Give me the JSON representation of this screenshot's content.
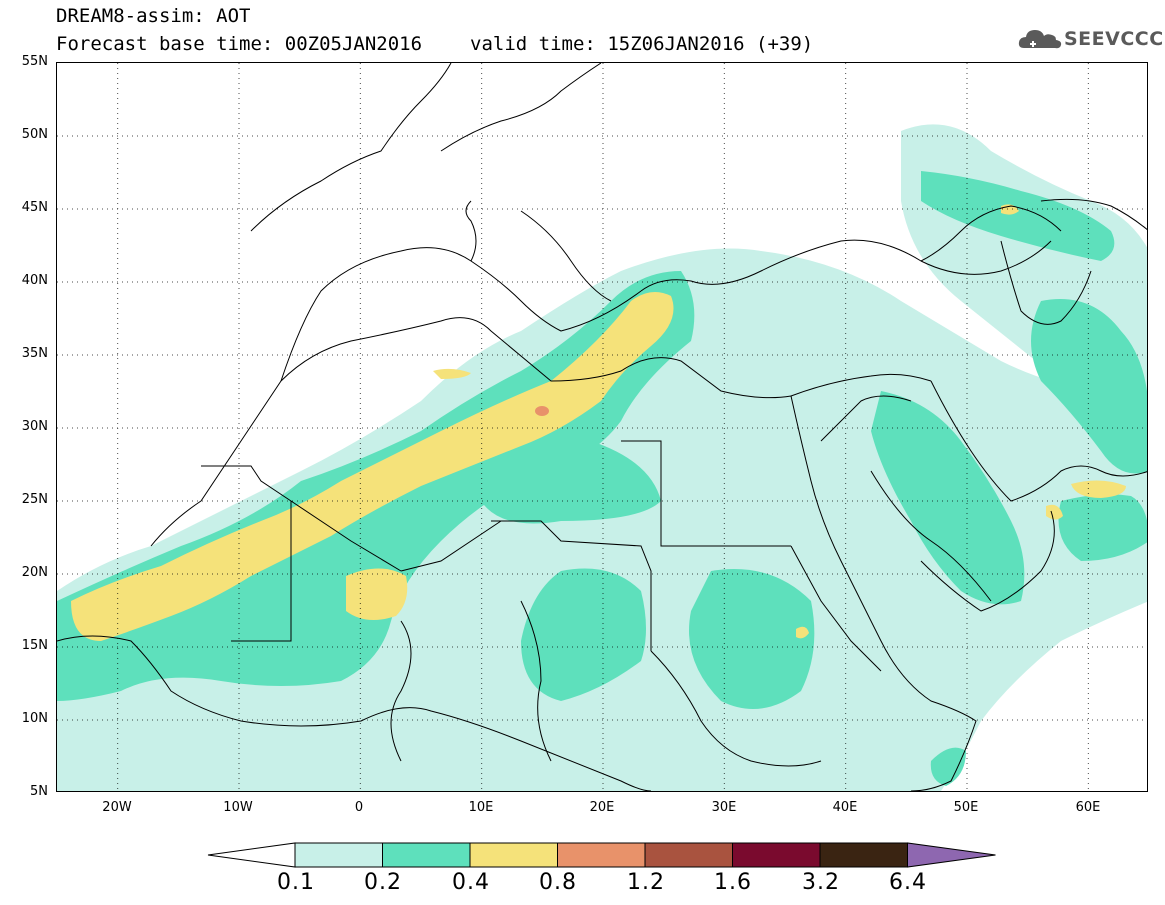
{
  "header": {
    "title": "DREAM8-assim: AOT",
    "base_time_label": "Forecast base time: 00Z05JAN2016",
    "valid_time_label": "valid time: 15Z06JAN2016 (+39)"
  },
  "logo": {
    "text": "SEEVCCC",
    "icon": "cloud-icon"
  },
  "map": {
    "variable": "AOT",
    "lon_range": [
      -25,
      65
    ],
    "lat_range": [
      5,
      55
    ],
    "grid": true,
    "lat_labels": [
      "55N",
      "50N",
      "45N",
      "40N",
      "35N",
      "30N",
      "25N",
      "20N",
      "15N",
      "10N",
      "5N"
    ],
    "lon_labels": [
      "20W",
      "10W",
      "0",
      "10E",
      "20E",
      "30E",
      "40E",
      "50E",
      "60E"
    ]
  },
  "colorbar": {
    "levels": [
      "0.1",
      "0.2",
      "0.4",
      "0.8",
      "1.2",
      "1.6",
      "3.2",
      "6.4"
    ],
    "colors": {
      "below": "#ffffff",
      "c1": "#c8f0e8",
      "c2": "#5ee0bc",
      "c3": "#f5e27a",
      "c4": "#e8926a",
      "c5": "#a9533f",
      "c6": "#7a0a2e",
      "c7": "#3a2412",
      "above": "#8e67b0"
    }
  }
}
